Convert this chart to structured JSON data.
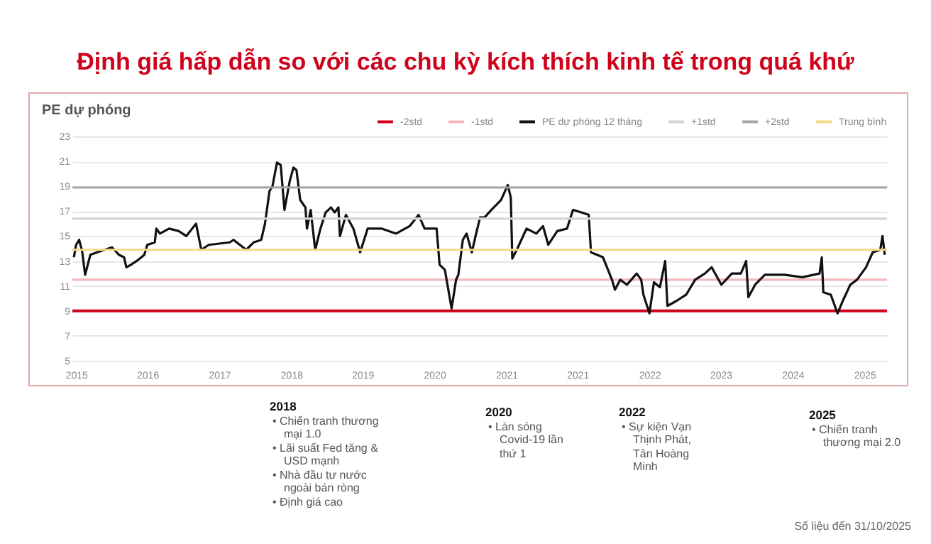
{
  "chart_data": {
    "type": "line",
    "title": "Định giá hấp dẫn so với các chu kỳ kích thích kinh tế trong quá khứ",
    "ylabel": "PE dự phóng",
    "xlim": [
      2014.73,
      2025.6
    ],
    "ylim": [
      5,
      23
    ],
    "yticks": [
      5,
      7,
      9,
      11,
      13,
      15,
      17,
      19,
      21,
      23
    ],
    "xticks": [
      {
        "value": 2014.78,
        "label": "2015"
      },
      {
        "value": 2015.73,
        "label": "2016"
      },
      {
        "value": 2016.69,
        "label": "2017"
      },
      {
        "value": 2017.65,
        "label": "2018"
      },
      {
        "value": 2018.6,
        "label": "2019"
      },
      {
        "value": 2019.56,
        "label": "2020"
      },
      {
        "value": 2020.52,
        "label": "2021"
      },
      {
        "value": 2021.47,
        "label": "2021"
      },
      {
        "value": 2022.43,
        "label": "2022"
      },
      {
        "value": 2023.38,
        "label": "2023"
      },
      {
        "value": 2024.34,
        "label": "2024"
      },
      {
        "value": 2025.3,
        "label": "2025"
      }
    ],
    "grid": "y",
    "legend": "top right",
    "annotations": [
      "2018",
      "• Chiến tranh thương mại 1.0",
      "• Lãi suất Fed tăng & USD mạnh",
      "• Nhà đầu tư nước ngoài bán ròng",
      "• Định giá cao",
      "2020",
      "• Làn sóng Covid-19 lần thứ 1",
      "2022",
      "• Sự kiện Vạn Thịnh Phát, Tân Hoàng Minh",
      "2025",
      "• Chiến tranh thương mại 2.0",
      "Số liệu đến 31/10/2025"
    ],
    "series": [
      {
        "name": "-2std",
        "color": "#d0021b",
        "x": [
          2014.73,
          2025.6
        ],
        "values": [
          9,
          9
        ]
      },
      {
        "name": "-1std",
        "color": "#f2b8bd",
        "x": [
          2014.73,
          2025.6
        ],
        "values": [
          11.5,
          11.5
        ]
      },
      {
        "name": "PE dự phóng 12 tháng",
        "color": "#111111",
        "x": [
          2014.75,
          2014.78,
          2014.82,
          2014.86,
          2014.9,
          2014.97,
          2015.06,
          2015.16,
          2015.26,
          2015.35,
          2015.42,
          2015.45,
          2015.51,
          2015.61,
          2015.69,
          2015.73,
          2015.83,
          2015.85,
          2015.9,
          2016.02,
          2016.15,
          2016.25,
          2016.38,
          2016.45,
          2016.55,
          2016.83,
          2016.88,
          2017.05,
          2017.15,
          2017.25,
          2017.3,
          2017.36,
          2017.4,
          2017.46,
          2017.51,
          2017.56,
          2017.63,
          2017.68,
          2017.72,
          2017.77,
          2017.84,
          2017.86,
          2017.91,
          2017.97,
          2018.04,
          2018.11,
          2018.18,
          2018.23,
          2018.28,
          2018.3,
          2018.38,
          2018.48,
          2018.57,
          2018.67,
          2018.86,
          2019.05,
          2019.23,
          2019.35,
          2019.43,
          2019.59,
          2019.63,
          2019.7,
          2019.79,
          2019.85,
          2019.88,
          2019.94,
          2019.99,
          2020.06,
          2020.11,
          2020.17,
          2020.23,
          2020.32,
          2020.45,
          2020.54,
          2020.58,
          2020.6,
          2020.66,
          2020.79,
          2020.92,
          2021.01,
          2021.08,
          2021.2,
          2021.33,
          2021.41,
          2021.52,
          2021.62,
          2021.65,
          2021.81,
          2021.93,
          2021.97,
          2022.04,
          2022.13,
          2022.26,
          2022.32,
          2022.35,
          2022.43,
          2022.49,
          2022.57,
          2022.64,
          2022.67,
          2022.79,
          2022.92,
          2023.04,
          2023.17,
          2023.26,
          2023.39,
          2023.53,
          2023.65,
          2023.72,
          2023.75,
          2023.84,
          2023.97,
          2024.23,
          2024.47,
          2024.7,
          2024.73,
          2024.75,
          2024.85,
          2024.94,
          2025.01,
          2025.11,
          2025.2,
          2025.32,
          2025.41,
          2025.51,
          2025.54,
          2025.57
        ],
        "values": [
          13.3,
          14.3,
          14.7,
          13.8,
          11.9,
          13.5,
          13.7,
          13.9,
          14.1,
          13.5,
          13.3,
          12.5,
          12.7,
          13.1,
          13.5,
          14.3,
          14.5,
          15.6,
          15.2,
          15.6,
          15.4,
          15.0,
          16.0,
          13.9,
          14.3,
          14.5,
          14.7,
          13.9,
          14.5,
          14.7,
          16.0,
          18.6,
          19.0,
          20.9,
          20.7,
          17.1,
          19.4,
          20.5,
          20.3,
          17.9,
          17.3,
          15.6,
          17.1,
          13.9,
          15.6,
          16.9,
          17.3,
          16.9,
          17.3,
          15.0,
          16.7,
          15.6,
          13.7,
          15.6,
          15.6,
          15.2,
          15.8,
          16.7,
          15.6,
          15.6,
          12.7,
          12.3,
          9.2,
          11.5,
          11.9,
          14.7,
          15.2,
          13.7,
          15.0,
          16.5,
          16.5,
          17.1,
          17.9,
          19.1,
          18.1,
          13.2,
          13.9,
          15.6,
          15.2,
          15.8,
          14.3,
          15.4,
          15.6,
          17.1,
          16.9,
          16.7,
          13.7,
          13.3,
          11.5,
          10.7,
          11.5,
          11.1,
          12.0,
          11.5,
          10.3,
          8.8,
          11.3,
          10.9,
          13.0,
          9.4,
          9.8,
          10.3,
          11.5,
          12.0,
          12.5,
          11.1,
          12.0,
          12.0,
          13.0,
          10.1,
          11.1,
          11.9,
          11.9,
          11.7,
          12.0,
          13.3,
          10.5,
          10.3,
          8.8,
          9.8,
          11.1,
          11.5,
          12.5,
          13.7,
          13.9,
          15.0,
          13.5
        ]
      },
      {
        "name": "+1std",
        "color": "#d4d4d4",
        "x": [
          2014.73,
          2025.6
        ],
        "values": [
          16.4,
          16.4
        ]
      },
      {
        "name": "+2std",
        "color": "#a6a6a6",
        "x": [
          2014.73,
          2025.6
        ],
        "values": [
          18.9,
          18.9
        ]
      },
      {
        "name": "Trung bình",
        "color": "#f2d98a",
        "x": [
          2014.73,
          2025.6
        ],
        "values": [
          13.9,
          13.9
        ]
      }
    ]
  }
}
